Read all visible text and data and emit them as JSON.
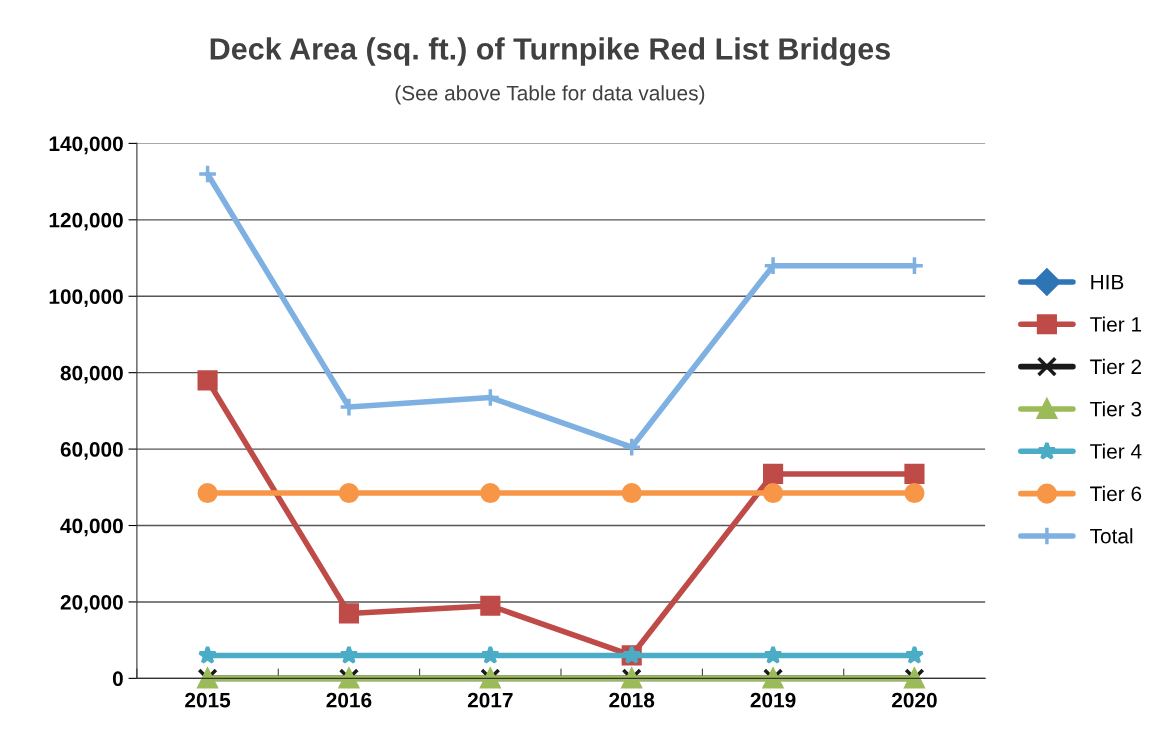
{
  "chart_data": {
    "type": "line",
    "title": "Deck Area (sq. ft.) of Turnpike Red List Bridges",
    "subtitle": "(See above Table for data values)",
    "categories": [
      "2015",
      "2016",
      "2017",
      "2018",
      "2019",
      "2020"
    ],
    "series": [
      {
        "name": "HIB",
        "color": "#2e75b6",
        "marker": "diamond",
        "values": [
          null,
          null,
          null,
          null,
          null,
          null
        ]
      },
      {
        "name": "Tier 1",
        "color": "#be4b48",
        "marker": "square",
        "values": [
          78000,
          17000,
          19000,
          6000,
          53500,
          53500
        ]
      },
      {
        "name": "Tier 2",
        "color": "#1a1a1a",
        "marker": "cross",
        "values": [
          0,
          0,
          0,
          0,
          0,
          0
        ]
      },
      {
        "name": "Tier 3",
        "color": "#9bbb59",
        "marker": "triangle",
        "values": [
          0,
          0,
          0,
          0,
          0,
          0
        ]
      },
      {
        "name": "Tier 4",
        "color": "#4bacc6",
        "marker": "star",
        "values": [
          6000,
          6000,
          6000,
          6000,
          6000,
          6000
        ]
      },
      {
        "name": "Tier 6",
        "color": "#f79646",
        "marker": "circle",
        "values": [
          48500,
          48500,
          48500,
          48500,
          48500,
          48500
        ]
      },
      {
        "name": "Total",
        "color": "#7eb1e1",
        "marker": "plus",
        "values": [
          132000,
          71000,
          73500,
          60500,
          108000,
          108000
        ]
      }
    ],
    "ylim": [
      0,
      140000
    ],
    "yticks": [
      {
        "value": 0,
        "label": "0"
      },
      {
        "value": 20000,
        "label": "20,000"
      },
      {
        "value": 40000,
        "label": "40,000"
      },
      {
        "value": 60000,
        "label": "60,000"
      },
      {
        "value": 80000,
        "label": "80,000"
      },
      {
        "value": 100000,
        "label": "100,000"
      },
      {
        "value": 120000,
        "label": "120,000"
      },
      {
        "value": 140000,
        "label": "140,000"
      }
    ],
    "grid": "y",
    "legend": "right",
    "line_style": "solid"
  }
}
